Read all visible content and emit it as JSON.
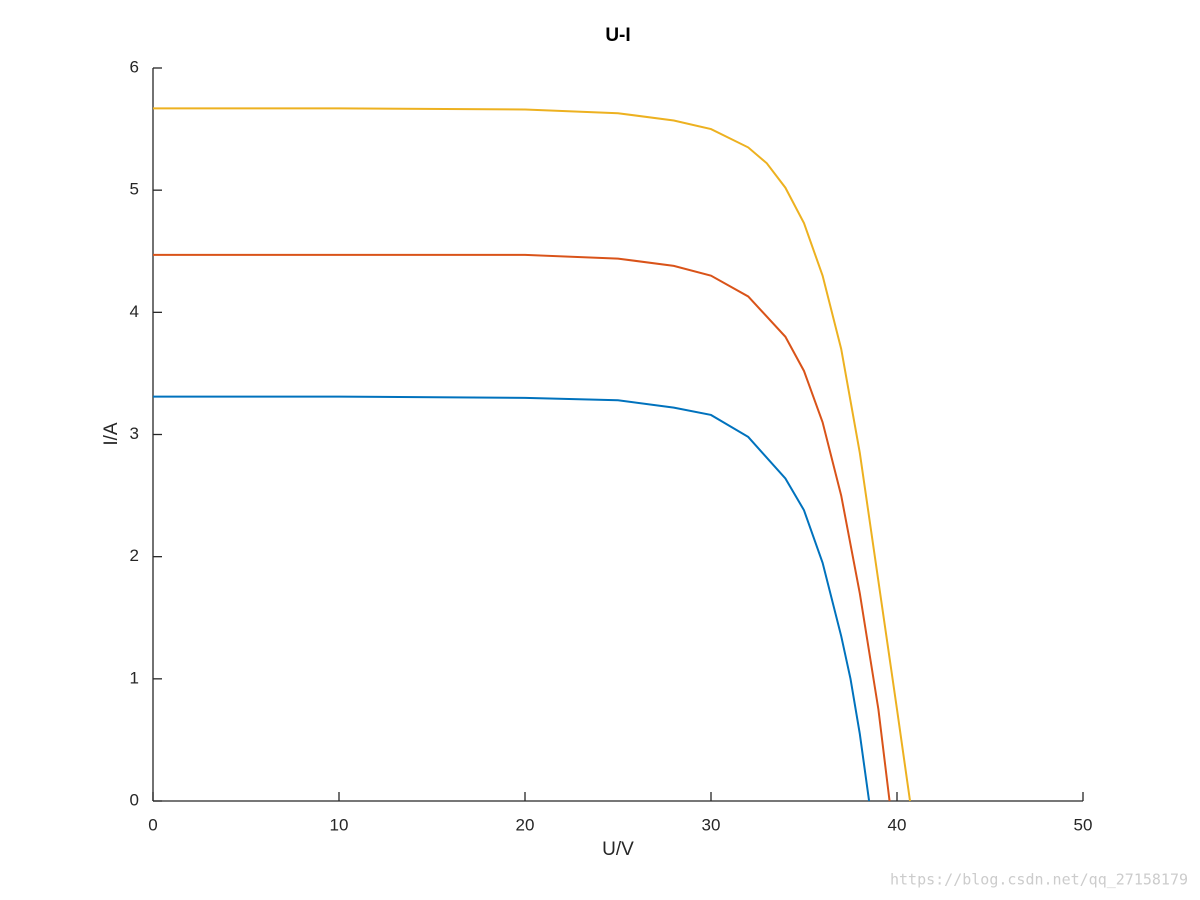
{
  "chart_data": {
    "type": "line",
    "title": "U-I",
    "x_label": "U/V",
    "y_label": "I/A",
    "xlim": [
      0,
      50
    ],
    "xticks": [
      0,
      10,
      20,
      30,
      40,
      50
    ],
    "ylim": [
      0,
      6
    ],
    "yticks": [
      0,
      1,
      2,
      3,
      4,
      5,
      6
    ],
    "grid": false,
    "series": [
      {
        "color": "#0072bd",
        "x": [
          0,
          10,
          20,
          25,
          28,
          30,
          32,
          34,
          35,
          36,
          37,
          37.5,
          38,
          38.5
        ],
        "values": [
          3.31,
          3.31,
          3.3,
          3.28,
          3.22,
          3.16,
          2.98,
          2.64,
          2.38,
          1.95,
          1.35,
          1.0,
          0.55,
          0
        ]
      },
      {
        "color": "#d95319",
        "x": [
          0,
          10,
          20,
          25,
          28,
          30,
          32,
          34,
          35,
          36,
          37,
          38,
          39,
          39.6
        ],
        "values": [
          4.47,
          4.47,
          4.47,
          4.44,
          4.38,
          4.3,
          4.13,
          3.8,
          3.52,
          3.1,
          2.5,
          1.7,
          0.75,
          0
        ]
      },
      {
        "color": "#edb120",
        "x": [
          0,
          10,
          20,
          25,
          28,
          30,
          32,
          33,
          34,
          35,
          36,
          37,
          38,
          39,
          40,
          40.7
        ],
        "values": [
          5.67,
          5.67,
          5.66,
          5.63,
          5.57,
          5.5,
          5.35,
          5.22,
          5.02,
          4.73,
          4.3,
          3.7,
          2.85,
          1.8,
          0.75,
          0
        ]
      }
    ],
    "watermark": "https://blog.csdn.net/qq_27158179"
  }
}
